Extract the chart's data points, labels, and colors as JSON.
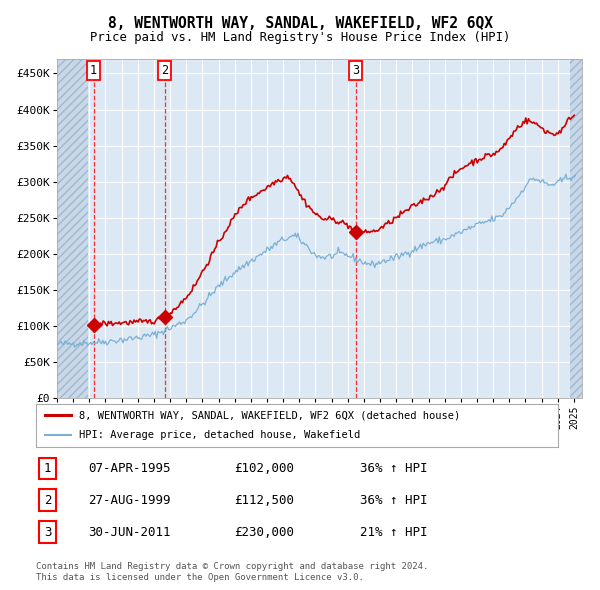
{
  "title": "8, WENTWORTH WAY, SANDAL, WAKEFIELD, WF2 6QX",
  "subtitle": "Price paid vs. HM Land Registry's House Price Index (HPI)",
  "ylim": [
    0,
    470000
  ],
  "yticks": [
    0,
    50000,
    100000,
    150000,
    200000,
    250000,
    300000,
    350000,
    400000,
    450000
  ],
  "ytick_labels": [
    "£0",
    "£50K",
    "£100K",
    "£150K",
    "£200K",
    "£250K",
    "£300K",
    "£350K",
    "£400K",
    "£450K"
  ],
  "xlim_start": 1993.0,
  "xlim_end": 2025.5,
  "background_color": "#ffffff",
  "plot_bg_color": "#dce9f5",
  "grid_color": "#ffffff",
  "sale_color": "#cc0000",
  "hpi_color": "#7ab0d4",
  "hatch_left_end": 1994.92,
  "hatch_right_start": 2024.75,
  "sale_date_nums": [
    1995.27,
    1999.66,
    2011.5
  ],
  "sale_prices": [
    102000,
    112500,
    230000
  ],
  "sale_labels": [
    "1",
    "2",
    "3"
  ],
  "hpi_anchors": [
    [
      1993.0,
      75000
    ],
    [
      1994.0,
      76000
    ],
    [
      1995.0,
      77000
    ],
    [
      1996.0,
      78500
    ],
    [
      1997.0,
      81000
    ],
    [
      1998.0,
      84000
    ],
    [
      1999.0,
      88000
    ],
    [
      2000.0,
      97000
    ],
    [
      2001.0,
      108000
    ],
    [
      2002.0,
      130000
    ],
    [
      2003.0,
      155000
    ],
    [
      2004.0,
      175000
    ],
    [
      2005.0,
      190000
    ],
    [
      2006.0,
      205000
    ],
    [
      2007.0,
      220000
    ],
    [
      2007.75,
      225000
    ],
    [
      2008.5,
      210000
    ],
    [
      2009.0,
      198000
    ],
    [
      2009.5,
      195000
    ],
    [
      2010.0,
      197000
    ],
    [
      2010.5,
      200000
    ],
    [
      2011.0,
      198000
    ],
    [
      2011.5,
      193000
    ],
    [
      2012.0,
      188000
    ],
    [
      2012.5,
      185000
    ],
    [
      2013.0,
      188000
    ],
    [
      2013.5,
      192000
    ],
    [
      2014.0,
      195000
    ],
    [
      2015.0,
      205000
    ],
    [
      2016.0,
      215000
    ],
    [
      2017.0,
      220000
    ],
    [
      2018.0,
      230000
    ],
    [
      2019.0,
      240000
    ],
    [
      2020.0,
      248000
    ],
    [
      2020.5,
      252000
    ],
    [
      2021.0,
      265000
    ],
    [
      2021.5,
      278000
    ],
    [
      2022.0,
      295000
    ],
    [
      2022.5,
      305000
    ],
    [
      2023.0,
      300000
    ],
    [
      2023.5,
      295000
    ],
    [
      2024.0,
      298000
    ],
    [
      2024.5,
      305000
    ],
    [
      2025.0,
      308000
    ]
  ],
  "sale_anchors": [
    [
      1995.27,
      102000
    ],
    [
      1995.5,
      103000
    ],
    [
      1996.0,
      103500
    ],
    [
      1996.5,
      104000
    ],
    [
      1997.0,
      104500
    ],
    [
      1997.5,
      105000
    ],
    [
      1998.0,
      105500
    ],
    [
      1998.5,
      106000
    ],
    [
      1999.0,
      107000
    ],
    [
      1999.66,
      112500
    ],
    [
      2000.0,
      118000
    ],
    [
      2000.5,
      128000
    ],
    [
      2001.0,
      140000
    ],
    [
      2001.5,
      155000
    ],
    [
      2002.0,
      175000
    ],
    [
      2002.5,
      195000
    ],
    [
      2003.0,
      215000
    ],
    [
      2003.5,
      235000
    ],
    [
      2004.0,
      252000
    ],
    [
      2004.5,
      268000
    ],
    [
      2005.0,
      278000
    ],
    [
      2005.5,
      285000
    ],
    [
      2006.0,
      292000
    ],
    [
      2006.5,
      300000
    ],
    [
      2007.0,
      305000
    ],
    [
      2007.33,
      308000
    ],
    [
      2007.75,
      295000
    ],
    [
      2008.0,
      283000
    ],
    [
      2008.5,
      268000
    ],
    [
      2009.0,
      255000
    ],
    [
      2009.5,
      248000
    ],
    [
      2010.0,
      248000
    ],
    [
      2010.5,
      245000
    ],
    [
      2011.0,
      240000
    ],
    [
      2011.5,
      230000
    ],
    [
      2011.75,
      228000
    ],
    [
      2012.0,
      232000
    ],
    [
      2012.5,
      230000
    ],
    [
      2013.0,
      235000
    ],
    [
      2013.5,
      242000
    ],
    [
      2014.0,
      250000
    ],
    [
      2014.5,
      258000
    ],
    [
      2015.0,
      265000
    ],
    [
      2015.5,
      272000
    ],
    [
      2016.0,
      278000
    ],
    [
      2016.5,
      285000
    ],
    [
      2017.0,
      295000
    ],
    [
      2017.5,
      308000
    ],
    [
      2018.0,
      318000
    ],
    [
      2018.5,
      325000
    ],
    [
      2019.0,
      330000
    ],
    [
      2019.5,
      335000
    ],
    [
      2020.0,
      338000
    ],
    [
      2020.5,
      345000
    ],
    [
      2021.0,
      360000
    ],
    [
      2021.5,
      375000
    ],
    [
      2022.0,
      385000
    ],
    [
      2022.5,
      382000
    ],
    [
      2022.75,
      378000
    ],
    [
      2023.0,
      375000
    ],
    [
      2023.25,
      370000
    ],
    [
      2023.5,
      368000
    ],
    [
      2023.75,
      365000
    ],
    [
      2024.0,
      368000
    ],
    [
      2024.25,
      372000
    ],
    [
      2024.5,
      378000
    ],
    [
      2024.75,
      390000
    ],
    [
      2025.0,
      392000
    ]
  ],
  "legend_entries": [
    "8, WENTWORTH WAY, SANDAL, WAKEFIELD, WF2 6QX (detached house)",
    "HPI: Average price, detached house, Wakefield"
  ],
  "footer": [
    "Contains HM Land Registry data © Crown copyright and database right 2024.",
    "This data is licensed under the Open Government Licence v3.0."
  ],
  "table_rows": [
    {
      "num": "1",
      "date": "07-APR-1995",
      "price": "£102,000",
      "hpi": "36% ↑ HPI"
    },
    {
      "num": "2",
      "date": "27-AUG-1999",
      "price": "£112,500",
      "hpi": "36% ↑ HPI"
    },
    {
      "num": "3",
      "date": "30-JUN-2011",
      "price": "£230,000",
      "hpi": "21% ↑ HPI"
    }
  ]
}
